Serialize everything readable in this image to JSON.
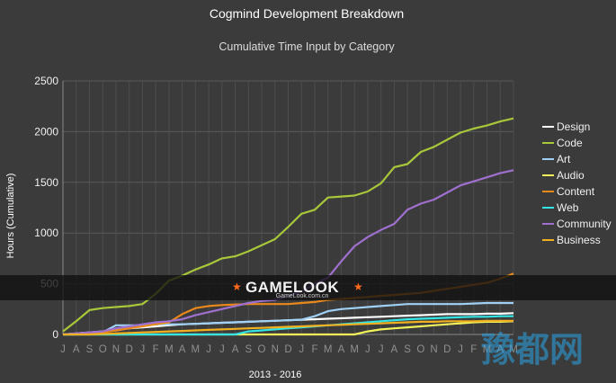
{
  "chart_data": {
    "type": "line",
    "title": "Cogmind Development Breakdown",
    "subtitle": "Cumulative Time Input by Category",
    "xlabel": "2013 - 2016",
    "ylabel": "Hours (Cumulative)",
    "ylim": [
      0,
      2500
    ],
    "yticks": [
      0,
      500,
      1000,
      1500,
      2000,
      2500
    ],
    "x_tick_labels": [
      "J",
      "A",
      "S",
      "O",
      "N",
      "D",
      "J",
      "F",
      "M",
      "A",
      "M",
      "J",
      "J",
      "A",
      "S",
      "O",
      "N",
      "D",
      "J",
      "F",
      "M",
      "A",
      "M",
      "J",
      "J",
      "A",
      "S",
      "O",
      "N",
      "D",
      "J",
      "F",
      "M",
      "A",
      "M"
    ],
    "grid": true,
    "legend_position": "right",
    "series": [
      {
        "name": "Design",
        "color": "#ffffff",
        "values": [
          0,
          10,
          20,
          30,
          40,
          60,
          70,
          80,
          90,
          100,
          105,
          110,
          115,
          120,
          125,
          130,
          135,
          140,
          145,
          150,
          155,
          160,
          165,
          170,
          175,
          180,
          185,
          190,
          195,
          200,
          200,
          200,
          205,
          205,
          210
        ]
      },
      {
        "name": "Code",
        "color": "#a8c83a",
        "values": [
          30,
          130,
          240,
          260,
          270,
          280,
          300,
          400,
          530,
          580,
          640,
          690,
          750,
          770,
          820,
          880,
          940,
          1060,
          1190,
          1230,
          1350,
          1360,
          1370,
          1410,
          1490,
          1650,
          1680,
          1800,
          1850,
          1920,
          1990,
          2030,
          2060,
          2100,
          2130
        ]
      },
      {
        "name": "Art",
        "color": "#9fd0f5",
        "values": [
          0,
          0,
          10,
          20,
          90,
          90,
          90,
          100,
          100,
          100,
          105,
          110,
          115,
          120,
          125,
          130,
          135,
          140,
          145,
          180,
          230,
          250,
          260,
          270,
          280,
          290,
          300,
          300,
          300,
          300,
          300,
          305,
          310,
          310,
          310
        ]
      },
      {
        "name": "Audio",
        "color": "#f2f25a",
        "values": [
          0,
          0,
          0,
          0,
          0,
          0,
          0,
          0,
          0,
          0,
          0,
          0,
          0,
          0,
          0,
          0,
          0,
          0,
          0,
          0,
          0,
          0,
          0,
          30,
          50,
          60,
          70,
          80,
          90,
          100,
          110,
          120,
          125,
          125,
          130
        ]
      },
      {
        "name": "Content",
        "color": "#e8891a",
        "values": [
          0,
          5,
          10,
          20,
          40,
          60,
          80,
          100,
          120,
          200,
          260,
          280,
          290,
          295,
          300,
          300,
          300,
          300,
          310,
          320,
          340,
          350,
          360,
          370,
          380,
          390,
          400,
          410,
          430,
          450,
          470,
          490,
          510,
          550,
          600
        ]
      },
      {
        "name": "Web",
        "color": "#33e5e5",
        "values": [
          0,
          0,
          0,
          0,
          0,
          0,
          0,
          0,
          0,
          0,
          0,
          0,
          0,
          0,
          30,
          40,
          50,
          60,
          70,
          80,
          90,
          100,
          110,
          120,
          130,
          140,
          150,
          155,
          160,
          165,
          170,
          175,
          175,
          180,
          180
        ]
      },
      {
        "name": "Community",
        "color": "#a070d0",
        "values": [
          0,
          10,
          20,
          30,
          60,
          80,
          100,
          120,
          130,
          150,
          190,
          220,
          250,
          280,
          310,
          330,
          340,
          380,
          420,
          500,
          560,
          720,
          870,
          960,
          1030,
          1090,
          1230,
          1290,
          1330,
          1400,
          1470,
          1510,
          1550,
          1590,
          1620
        ]
      },
      {
        "name": "Business",
        "color": "#f0b020",
        "values": [
          0,
          0,
          0,
          5,
          10,
          15,
          20,
          25,
          30,
          35,
          40,
          45,
          50,
          55,
          60,
          65,
          70,
          75,
          80,
          85,
          90,
          95,
          100,
          105,
          110,
          115,
          120,
          125,
          125,
          130,
          130,
          130,
          135,
          135,
          135
        ]
      }
    ]
  },
  "watermark": {
    "brand": "GAMELOOK",
    "site": "GameLook.com.cn",
    "corner": "豫都网"
  }
}
